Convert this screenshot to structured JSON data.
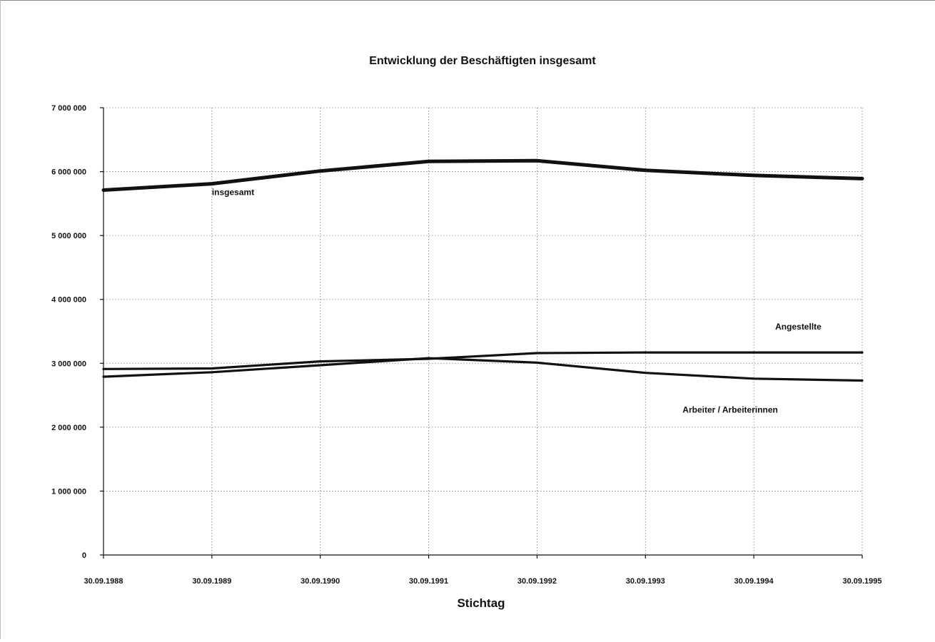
{
  "chart_data": {
    "type": "line",
    "title": "Entwicklung der Beschäftigten insgesamt",
    "xlabel": "Stichtag",
    "ylabel": "",
    "x": [
      "30.09.1988",
      "30.09.1989",
      "30.09.1990",
      "30.09.1991",
      "30.09.1992",
      "30.09.1993",
      "30.09.1994",
      "30.09.1995"
    ],
    "y_ticks": [
      "0",
      "1 000 000",
      "2 000 000",
      "3 000 000",
      "4 000 000",
      "5 000 000",
      "6 000 000",
      "7 000 000"
    ],
    "ylim": [
      0,
      7000000
    ],
    "grid": true,
    "legend": "labels placed on the lines",
    "series": [
      {
        "name": "insgesamt",
        "values": [
          5710000,
          5810000,
          6010000,
          6160000,
          6170000,
          6020000,
          5940000,
          5890000
        ],
        "color": "#111111"
      },
      {
        "name": "Angestellte",
        "values": [
          2910000,
          2920000,
          3030000,
          3070000,
          3160000,
          3170000,
          3170000,
          3170000
        ],
        "color": "#111111"
      },
      {
        "name": "Arbeiter / Arbeiterinnen",
        "values": [
          2790000,
          2860000,
          2970000,
          3080000,
          3010000,
          2850000,
          2760000,
          2730000
        ],
        "color": "#111111"
      }
    ]
  }
}
